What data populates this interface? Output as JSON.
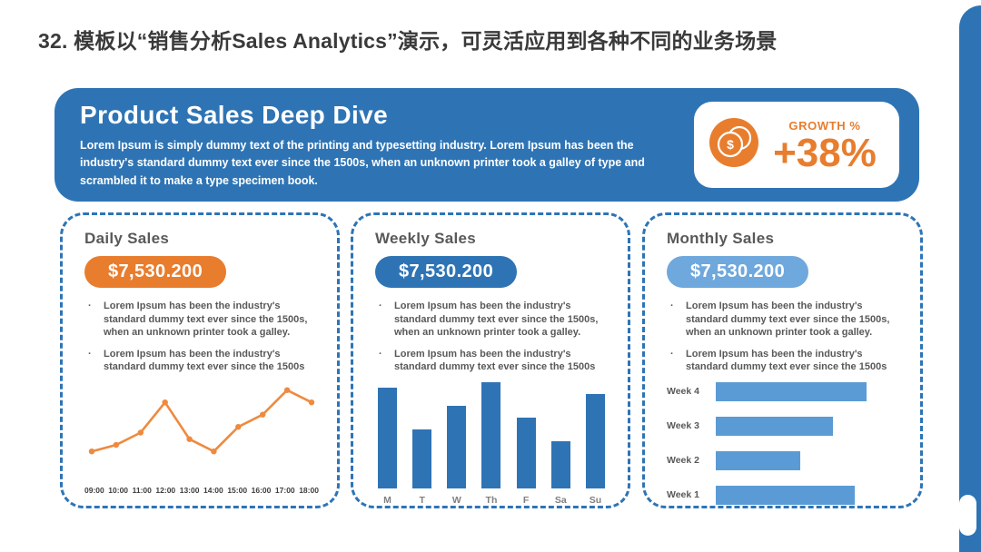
{
  "page": {
    "title": "32. 模板以“销售分析Sales Analytics”演示，可灵活应用到各种不同的业务场景"
  },
  "header": {
    "title": "Product Sales Deep Dive",
    "description": "Lorem Ipsum is simply dummy text of the printing and typesetting industry. Lorem Ipsum has been the industry's standard dummy text ever since the 1500s, when an unknown printer took a galley of type and scrambled it to make a type specimen book.",
    "growth": {
      "icon": "coins-dollar-icon",
      "label": "GROWTH %",
      "value": "+38%"
    },
    "colors": {
      "header_bg": "#2E74B5",
      "accent_orange": "#E87D2E"
    }
  },
  "panels": [
    {
      "title": "Daily Sales",
      "badge": "$7,530.200",
      "badge_color": "#E87D2E",
      "bullets": [
        "Lorem Ipsum has been the industry's standard dummy text ever since the 1500s, when an unknown printer took a galley.",
        "Lorem Ipsum has been the industry's standard dummy text ever since the 1500s"
      ]
    },
    {
      "title": "Weekly Sales",
      "badge": "$7,530.200",
      "badge_color": "#2E74B5",
      "bullets": [
        "Lorem Ipsum has been the industry's standard dummy text ever since the 1500s, when an unknown printer took a galley.",
        "Lorem Ipsum has been the industry's standard dummy text ever since the 1500s"
      ]
    },
    {
      "title": "Monthly Sales",
      "badge": "$7,530.200",
      "badge_color": "#6FA8DC",
      "bullets": [
        "Lorem Ipsum has been the industry's standard dummy text ever since the 1500s, when an unknown printer took a galley.",
        "Lorem Ipsum has been the industry's standard dummy text ever since the 1500s"
      ]
    }
  ],
  "chart_data": [
    {
      "type": "line",
      "panel": "Daily Sales",
      "x": [
        "09:00",
        "10:00",
        "11:00",
        "12:00",
        "13:00",
        "14:00",
        "15:00",
        "16:00",
        "17:00",
        "18:00"
      ],
      "values": [
        22,
        30,
        45,
        82,
        37,
        22,
        52,
        67,
        97,
        82
      ],
      "color": "#EE8A3F",
      "markers": true,
      "grid": false,
      "axis_lines": false
    },
    {
      "type": "bar",
      "panel": "Weekly Sales",
      "categories": [
        "M",
        "T",
        "W",
        "Th",
        "F",
        "Sa",
        "Su"
      ],
      "values": [
        85,
        50,
        70,
        90,
        60,
        40,
        80
      ],
      "color": "#2E74B5",
      "grid": false
    },
    {
      "type": "bar",
      "orientation": "horizontal",
      "panel": "Monthly Sales",
      "categories": [
        "Week 4",
        "Week 3",
        "Week 2",
        "Week 1"
      ],
      "values": [
        100,
        78,
        56,
        92
      ],
      "color": "#5B9BD5",
      "grid": false
    }
  ]
}
